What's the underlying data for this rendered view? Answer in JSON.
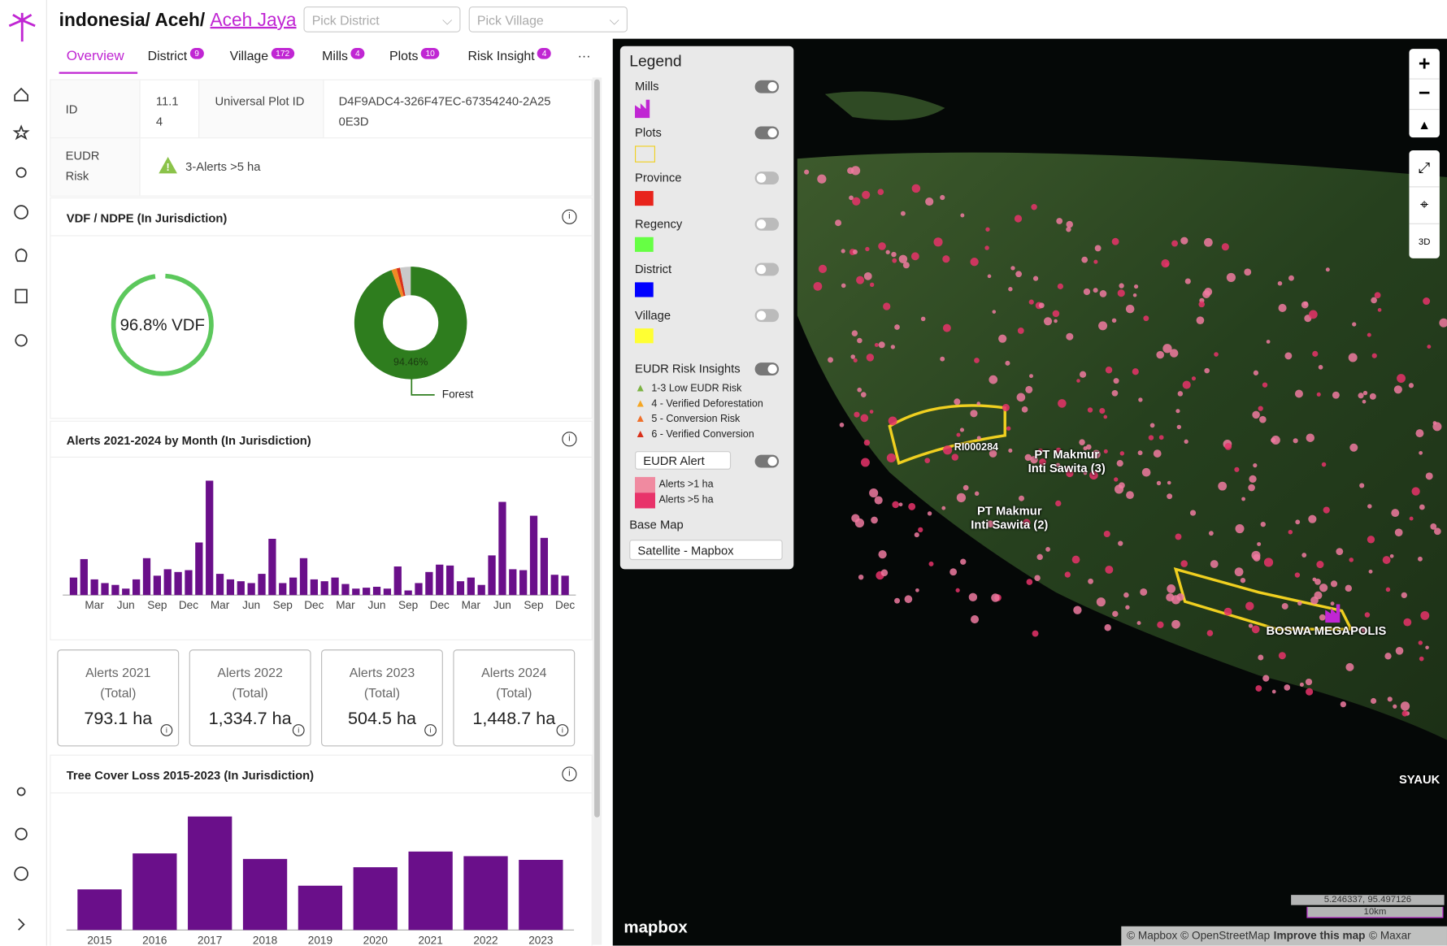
{
  "header": {
    "breadcrumb": "indonesia/ Aceh/ ",
    "link": "Aceh Jaya",
    "district_placeholder": "Pick District",
    "village_placeholder": "Pick Village"
  },
  "tabs": [
    {
      "label": "Overview"
    },
    {
      "label": "District",
      "badge": 9
    },
    {
      "label": "Village",
      "badge": 172
    },
    {
      "label": "Mills",
      "badge": 4
    },
    {
      "label": "Plots",
      "badge": 10
    },
    {
      "label": "Risk Insight",
      "badge": 4
    },
    {
      "label": "···"
    }
  ],
  "info": {
    "id_label": "ID",
    "id_value": "11.14",
    "upid_label": "Universal Plot ID",
    "upid_value": "D4F9ADC4-326F47EC-67354240-2A250E3D",
    "risk_label": "EUDR Risk",
    "risk_value": "3-Alerts >5 ha"
  },
  "chart_data": [
    {
      "type": "gauge",
      "title": "VDF / NDPE (In Jurisdiction)",
      "values": [
        96.8
      ],
      "value_labels": [
        "96.8% VDF"
      ],
      "color": "#5cc85c"
    },
    {
      "type": "pie",
      "categories": [
        "Forest",
        null,
        null,
        null
      ],
      "values": [
        94.46,
        1.5,
        1.0,
        3.04
      ],
      "value_labels": [
        "94.46%",
        null,
        null,
        null
      ],
      "colors": [
        "#2e7d1e",
        "#f08a24",
        "#d9301a",
        "#c9c9c9"
      ]
    },
    {
      "type": "bar",
      "title": "Alerts 2021-2024 by Month (In Jurisdiction)",
      "color": "#6a0f8a",
      "categories": [
        null,
        null,
        "Mar",
        null,
        null,
        "Jun",
        null,
        null,
        "Sep",
        null,
        null,
        "Dec",
        null,
        null,
        "Mar",
        null,
        null,
        "Jun",
        null,
        null,
        "Sep",
        null,
        null,
        "Dec",
        null,
        null,
        "Mar",
        null,
        null,
        "Jun",
        null,
        null,
        "Sep",
        null,
        null,
        "Dec",
        null,
        null,
        "Mar",
        null,
        null,
        "Jun",
        null,
        null,
        "Sep",
        null,
        null,
        "Dec"
      ],
      "values": [
        19,
        39,
        17,
        13,
        11,
        7,
        17,
        40,
        21,
        28,
        25,
        27,
        57,
        124,
        23,
        17,
        15,
        13,
        23,
        61,
        13,
        19,
        40,
        17,
        15,
        19,
        12,
        7,
        8,
        9,
        7,
        31,
        5,
        13,
        25,
        33,
        32,
        15,
        19,
        11,
        43,
        101,
        28,
        27,
        86,
        62,
        22,
        21
      ]
    },
    {
      "type": "bar",
      "title": "Tree Cover Loss 2015-2023 (In Jurisdiction)",
      "color": "#6a0f8a",
      "categories": [
        "2015",
        "2016",
        "2017",
        "2018",
        "2019",
        "2020",
        "2021",
        "2022",
        "2023"
      ],
      "values": [
        44,
        83,
        123,
        77,
        48,
        68,
        85,
        80,
        76
      ]
    }
  ],
  "cards": [
    {
      "title": "Alerts 2021",
      "sub": "(Total)",
      "value": "793.1 ha"
    },
    {
      "title": "Alerts 2022",
      "sub": "(Total)",
      "value": "1,334.7 ha"
    },
    {
      "title": "Alerts 2023",
      "sub": "(Total)",
      "value": "504.5 ha"
    },
    {
      "title": "Alerts 2024",
      "sub": "(Total)",
      "value": "1,448.7 ha"
    }
  ],
  "legend": {
    "title": "Legend",
    "layers": [
      {
        "label": "Mills",
        "on": true
      },
      {
        "label": "Plots",
        "on": true
      },
      {
        "label": "Province",
        "on": false,
        "color": "#e8241c"
      },
      {
        "label": "Regency",
        "on": false,
        "color": "#66ff44"
      },
      {
        "label": "District",
        "on": false,
        "color": "#0000ff"
      },
      {
        "label": "Village",
        "on": false,
        "color": "#ffff33"
      }
    ],
    "risk_title": "EUDR Risk Insights",
    "risk_on": true,
    "risks": [
      {
        "label": "1-3 Low EUDR Risk",
        "color": "#7cb342"
      },
      {
        "label": "4 - Verified Deforestation",
        "color": "#f5a623"
      },
      {
        "label": "5 - Conversion Risk",
        "color": "#f0702a"
      },
      {
        "label": "6 - Verified Conversion",
        "color": "#d9301a"
      }
    ],
    "alert_select": "EUDR Alert",
    "alert_on": true,
    "alerts": [
      {
        "label": "Alerts >1 ha",
        "color": "#f08aa0"
      },
      {
        "label": "Alerts >5 ha",
        "color": "#e8336a"
      }
    ],
    "basemap_label": "Base Map",
    "basemap": "Satellite - Mapbox"
  },
  "map": {
    "labels": [
      "RI000284",
      "PT Makmur\nInti Sawita (3)",
      "PT Makmur\nInti Sawita (2)",
      "BOSWA MEGAPOLIS",
      "SYAUK"
    ],
    "logo": "mapbox",
    "coords": "5.246337, 95.497126",
    "scale": "10km",
    "attribution": "© Mapbox © OpenStreetMap",
    "improve": "Improve this map",
    "maxar": "© Maxar"
  }
}
